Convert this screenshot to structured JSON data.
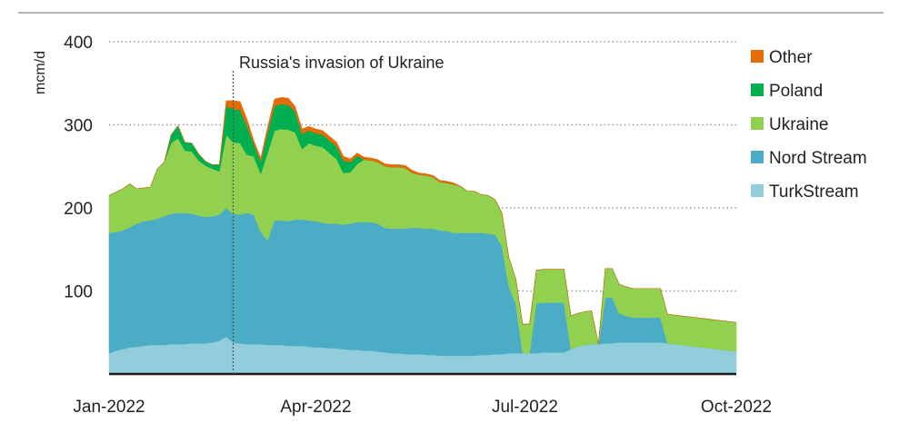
{
  "chart_data": {
    "type": "area",
    "stacked": true,
    "title": "",
    "ylabel": "mcm/d",
    "xlabel": "",
    "ylim": [
      0,
      400
    ],
    "yticks": [
      100,
      200,
      300,
      400
    ],
    "xlim": [
      "2022-01-01",
      "2022-10-01"
    ],
    "xticks": [
      {
        "date": "2022-01-01",
        "label": "Jan-2022"
      },
      {
        "date": "2022-04-01",
        "label": "Apr-2022"
      },
      {
        "date": "2022-07-01",
        "label": "Jul-2022"
      },
      {
        "date": "2022-10-01",
        "label": "Oct-2022"
      }
    ],
    "grid": "horizontal-dotted",
    "legend_position": "right",
    "annotation": {
      "date": "2022-02-24",
      "label": "Russia's invasion of Ukraine"
    },
    "x": [
      "2022-01-01",
      "2022-01-04",
      "2022-01-07",
      "2022-01-10",
      "2022-01-13",
      "2022-01-16",
      "2022-01-19",
      "2022-01-22",
      "2022-01-25",
      "2022-01-28",
      "2022-01-31",
      "2022-02-03",
      "2022-02-06",
      "2022-02-09",
      "2022-02-12",
      "2022-02-15",
      "2022-02-18",
      "2022-02-21",
      "2022-02-24",
      "2022-02-27",
      "2022-03-02",
      "2022-03-05",
      "2022-03-08",
      "2022-03-11",
      "2022-03-14",
      "2022-03-17",
      "2022-03-20",
      "2022-03-23",
      "2022-03-26",
      "2022-03-29",
      "2022-04-01",
      "2022-04-04",
      "2022-04-07",
      "2022-04-10",
      "2022-04-13",
      "2022-04-16",
      "2022-04-19",
      "2022-04-22",
      "2022-04-25",
      "2022-04-28",
      "2022-05-01",
      "2022-05-04",
      "2022-05-07",
      "2022-05-10",
      "2022-05-13",
      "2022-05-16",
      "2022-05-19",
      "2022-05-22",
      "2022-05-25",
      "2022-05-28",
      "2022-05-31",
      "2022-06-03",
      "2022-06-06",
      "2022-06-09",
      "2022-06-12",
      "2022-06-15",
      "2022-06-18",
      "2022-06-21",
      "2022-06-24",
      "2022-06-27",
      "2022-06-30",
      "2022-07-03",
      "2022-07-06",
      "2022-07-09",
      "2022-07-12",
      "2022-07-15",
      "2022-07-18",
      "2022-07-21",
      "2022-07-24",
      "2022-07-27",
      "2022-07-30",
      "2022-08-02",
      "2022-08-05",
      "2022-08-08",
      "2022-08-11",
      "2022-08-14",
      "2022-08-17",
      "2022-08-20",
      "2022-08-23",
      "2022-08-26",
      "2022-08-29",
      "2022-09-01",
      "2022-09-04",
      "2022-09-07",
      "2022-09-10",
      "2022-09-13",
      "2022-09-16",
      "2022-09-19",
      "2022-09-22",
      "2022-09-25",
      "2022-09-28",
      "2022-10-01"
    ],
    "series": [
      {
        "name": "TurkStream",
        "color": "#92cddc",
        "values": [
          25,
          28,
          30,
          32,
          33,
          34,
          35,
          35,
          35,
          36,
          36,
          36,
          37,
          37,
          37,
          38,
          40,
          45,
          38,
          37,
          36,
          36,
          36,
          35,
          35,
          35,
          34,
          34,
          34,
          33,
          32,
          32,
          31,
          31,
          30,
          29,
          29,
          28,
          28,
          27,
          26,
          25,
          25,
          24,
          24,
          24,
          23,
          23,
          22,
          22,
          22,
          22,
          22,
          22,
          23,
          23,
          24,
          24,
          25,
          25,
          25,
          25,
          25,
          26,
          26,
          26,
          26,
          30,
          33,
          35,
          36,
          36,
          37,
          37,
          38,
          38,
          38,
          38,
          38,
          38,
          38,
          37,
          36,
          35,
          34,
          33,
          32,
          31,
          30,
          29,
          28,
          27
        ]
      },
      {
        "name": "Nord Stream",
        "color": "#4bacc6",
        "values": [
          145,
          143,
          143,
          145,
          148,
          150,
          150,
          152,
          155,
          157,
          158,
          158,
          156,
          154,
          152,
          152,
          152,
          155,
          155,
          155,
          158,
          156,
          135,
          126,
          150,
          150,
          150,
          152,
          152,
          152,
          152,
          150,
          150,
          150,
          150,
          152,
          154,
          155,
          155,
          154,
          150,
          150,
          150,
          151,
          152,
          152,
          152,
          152,
          151,
          150,
          148,
          148,
          148,
          148,
          147,
          146,
          144,
          130,
          80,
          60,
          0,
          0,
          60,
          60,
          60,
          60,
          60,
          0,
          0,
          0,
          0,
          0,
          55,
          55,
          35,
          32,
          30,
          30,
          30,
          30,
          30,
          0,
          0,
          0,
          0,
          0,
          0,
          0,
          0,
          0,
          0,
          0
        ]
      },
      {
        "name": "Ukraine",
        "color": "#92d050",
        "values": [
          45,
          48,
          50,
          52,
          42,
          40,
          40,
          60,
          65,
          85,
          90,
          75,
          75,
          66,
          62,
          57,
          52,
          88,
          86,
          86,
          70,
          70,
          70,
          105,
          108,
          110,
          110,
          105,
          85,
          93,
          91,
          91,
          85,
          78,
          62,
          62,
          70,
          75,
          74,
          74,
          74,
          74,
          74,
          73,
          66,
          64,
          64,
          62,
          58,
          58,
          58,
          56,
          50,
          50,
          46,
          46,
          42,
          40,
          35,
          30,
          35,
          35,
          40,
          40,
          40,
          40,
          40,
          40,
          40,
          40,
          40,
          0,
          35,
          35,
          35,
          35,
          35,
          35,
          35,
          35,
          35,
          35,
          35,
          35,
          35,
          35,
          35,
          35,
          35,
          35,
          35,
          35
        ]
      },
      {
        "name": "Poland",
        "color": "#00b050",
        "values": [
          0,
          0,
          0,
          0,
          0,
          0,
          0,
          0,
          0,
          10,
          15,
          10,
          10,
          8,
          5,
          5,
          8,
          35,
          40,
          40,
          35,
          15,
          15,
          25,
          30,
          30,
          30,
          25,
          18,
          15,
          15,
          15,
          15,
          15,
          15,
          12,
          10,
          0,
          0,
          0,
          0,
          0,
          0,
          0,
          0,
          0,
          0,
          0,
          0,
          0,
          0,
          0,
          0,
          0,
          0,
          0,
          0,
          0,
          0,
          0,
          0,
          0,
          0,
          0,
          0,
          0,
          0,
          0,
          0,
          0,
          0,
          0,
          0,
          0,
          0,
          0,
          0,
          0,
          0,
          0,
          0,
          0,
          0,
          0,
          0,
          0,
          0,
          0,
          0,
          0,
          0,
          0
        ]
      },
      {
        "name": "Other",
        "color": "#e36c09",
        "values": [
          0,
          0,
          0,
          0,
          0,
          0,
          0,
          0,
          0,
          0,
          0,
          0,
          0,
          0,
          0,
          0,
          0,
          6,
          10,
          10,
          8,
          4,
          4,
          6,
          8,
          8,
          8,
          6,
          6,
          5,
          5,
          5,
          5,
          5,
          5,
          4,
          3,
          3,
          3,
          3,
          3,
          3,
          3,
          3,
          3,
          2,
          2,
          2,
          2,
          2,
          2,
          0,
          0,
          0,
          0,
          0,
          0,
          0,
          0,
          0,
          0,
          0,
          0,
          0,
          0,
          0,
          0,
          0,
          0,
          0,
          0,
          0,
          0,
          0,
          0,
          0,
          0,
          0,
          0,
          0,
          0,
          0,
          0,
          0,
          0,
          0,
          0,
          0,
          0,
          0,
          0,
          0
        ]
      }
    ]
  }
}
